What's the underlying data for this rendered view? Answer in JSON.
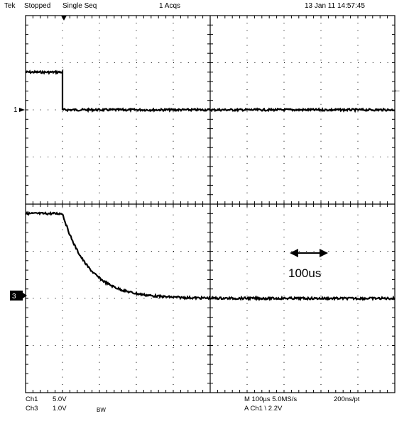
{
  "header": {
    "brand": "Tek",
    "run_state": "Stopped",
    "mode": "Single Seq",
    "acqs": "1 Acqs",
    "datetime": "13 Jan 11 14:57:45"
  },
  "markers": {
    "ch1_ground": "1",
    "ch3_ground": "3",
    "ch1_trigger_level_arrow": "←"
  },
  "annotation": {
    "arrow_symbol": "⟷",
    "label": "100us"
  },
  "footer": {
    "ch1_label": "Ch1",
    "ch1_scale": "5.0V",
    "ch3_label": "Ch3",
    "ch3_scale": "1.0V",
    "bw_label": "BW",
    "timebase": "M 100µs 5.0MS/s",
    "resolution": "200ns/pt",
    "trigger": "A  Ch1  \\  2.2V"
  },
  "traces": {
    "ch1": {
      "scale_v_per_div": 5.0,
      "level_before_trigger_div": 0.8,
      "level_after_trigger_div": 0.0
    },
    "ch3": {
      "scale_v_per_div": 1.0,
      "level_before_trigger_div": 1.8,
      "level_after_decay_div": 0.0,
      "decay_time_constant_us": 70
    },
    "trigger_time_div": 1.0,
    "timebase_us_per_div": 100,
    "total_horizontal_div": 10
  },
  "colors": {
    "background": "#ffffff",
    "trace": "#000000",
    "grid": "#000000"
  }
}
